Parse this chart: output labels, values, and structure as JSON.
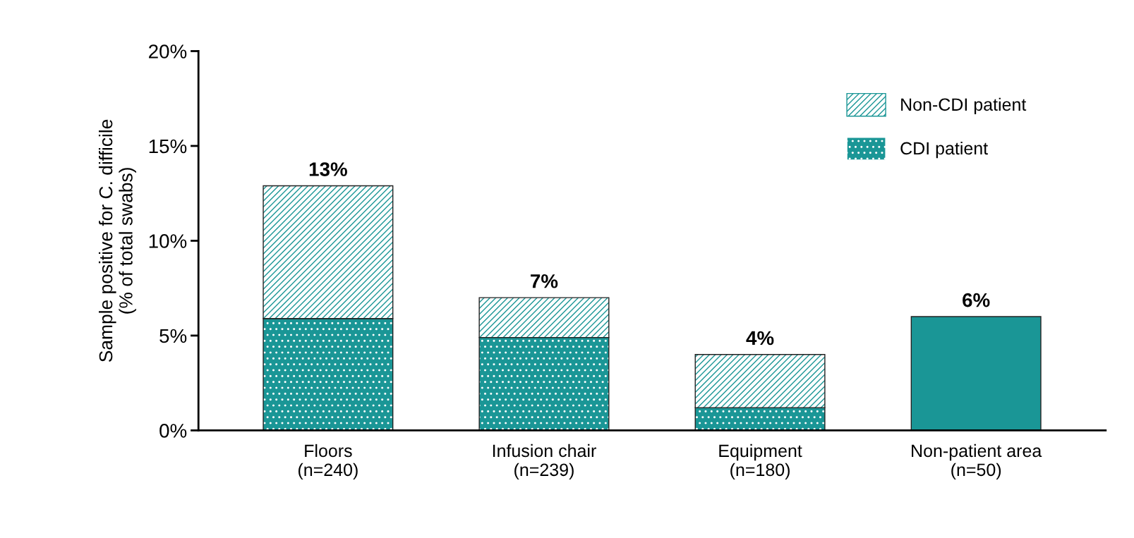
{
  "chart_data": {
    "type": "bar",
    "stacked": true,
    "ylabel": "Sample positive for C. difficile\n(% of total swabs)",
    "categories": [
      "Floors\n(n=240)",
      "Infusion chair\n(n=239)",
      "Equipment\n(n=180)",
      "Non-patient area\n(n=50)"
    ],
    "series": [
      {
        "name": "CDI patient",
        "color": "#1a9696",
        "values": [
          5.9,
          4.9,
          1.2,
          null
        ]
      },
      {
        "name": "Non-CDI patient",
        "color": "#1a9696",
        "values": [
          7.0,
          2.1,
          2.8,
          null
        ]
      },
      {
        "color": "#1a9696",
        "values": [
          null,
          null,
          null,
          6.0
        ]
      }
    ],
    "totals": [
      "13%",
      "7%",
      "4%",
      "6%"
    ],
    "ylim": [
      0,
      20
    ],
    "yticks": [
      {
        "value": 0,
        "label": "0%"
      },
      {
        "value": 5,
        "label": "5%"
      },
      {
        "value": 10,
        "label": "10%"
      },
      {
        "value": 15,
        "label": "15%"
      },
      {
        "value": 20,
        "label": "20%"
      }
    ],
    "legend": "top right",
    "grid": false
  }
}
